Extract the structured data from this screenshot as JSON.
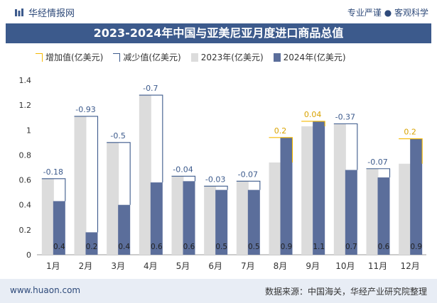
{
  "header": {
    "brand": "华经情报网",
    "tagline": "专业严谨 ● 客观科学"
  },
  "footer": {
    "website": "www.huaon.com",
    "source": "数据来源：中国海关，华经产业研究院整理"
  },
  "colors": {
    "title_bg": "#3c5a8c",
    "bar_2023": "#dcdcdc",
    "bar_2024": "#5b6e9b",
    "increase": "#f5b800",
    "decrease": "#3c5a8c"
  },
  "chart_data": {
    "type": "bar",
    "title": "2023-2024年中国与亚美尼亚月度进口商品总值",
    "categories": [
      "1月",
      "2月",
      "3月",
      "4月",
      "5月",
      "6月",
      "7月",
      "8月",
      "9月",
      "10月",
      "11月",
      "12月"
    ],
    "legend": [
      "增加值(亿美元)",
      "减少值(亿美元)",
      "2023年(亿美元)",
      "2024年(亿美元)"
    ],
    "series": [
      {
        "name": "2023年(亿美元)",
        "values": [
          0.61,
          1.11,
          0.9,
          1.28,
          0.63,
          0.55,
          0.59,
          0.74,
          1.03,
          1.05,
          0.69,
          0.73
        ]
      },
      {
        "name": "2024年(亿美元)",
        "values": [
          0.43,
          0.18,
          0.4,
          0.58,
          0.59,
          0.52,
          0.52,
          0.94,
          1.07,
          0.68,
          0.62,
          0.93
        ]
      }
    ],
    "bar_labels_2024": [
      "0.4",
      "0.2",
      "0.4",
      "0.6",
      "0.6",
      "0.5",
      "0.5",
      "0.9",
      "1.1",
      "0.7",
      "0.6",
      "0.9"
    ],
    "change_labels": [
      "-0.18",
      "-0.93",
      "-0.5",
      "-0.7",
      "-0.04",
      "-0.03",
      "-0.07",
      "0.2",
      "0.04",
      "-0.37",
      "-0.07",
      "0.2"
    ],
    "change_direction": [
      "down",
      "down",
      "down",
      "down",
      "down",
      "down",
      "down",
      "up",
      "up",
      "down",
      "down",
      "up"
    ],
    "y_ticks": [
      "0",
      "0.2",
      "0.4",
      "0.6",
      "0.8",
      "1",
      "1.2",
      "1.4"
    ],
    "ylim": [
      0,
      1.4
    ],
    "legend_position": "top"
  }
}
